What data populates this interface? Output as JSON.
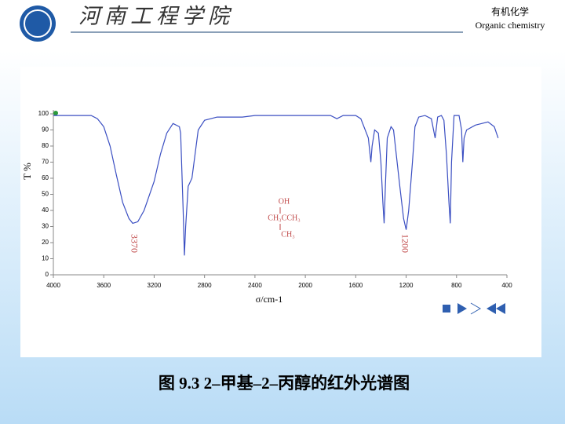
{
  "header": {
    "school": "河南工程学院",
    "course": "有机化学",
    "course_en": "Organic chemistry"
  },
  "caption": "图 9.3  2–甲基–2–丙醇的红外光谱图",
  "chart_data": {
    "type": "line",
    "ylabel": "T %",
    "xlabel": "σ/cm-1",
    "xlim": [
      4000,
      400
    ],
    "ylim": [
      0,
      100
    ],
    "xticks": [
      4000,
      3600,
      3200,
      2800,
      2400,
      2000,
      1600,
      1200,
      800,
      400
    ],
    "yticks": [
      0,
      10,
      20,
      30,
      40,
      50,
      60,
      70,
      80,
      90,
      100
    ],
    "color": "#3b4fc2",
    "x": [
      4000,
      3700,
      3650,
      3600,
      3550,
      3500,
      3450,
      3400,
      3370,
      3330,
      3280,
      3200,
      3150,
      3100,
      3050,
      3000,
      2990,
      2970,
      2960,
      2950,
      2930,
      2900,
      2880,
      2850,
      2800,
      2700,
      2500,
      2400,
      2000,
      1800,
      1750,
      1700,
      1600,
      1560,
      1500,
      1480,
      1470,
      1450,
      1420,
      1400,
      1385,
      1375,
      1365,
      1350,
      1320,
      1300,
      1250,
      1220,
      1200,
      1180,
      1150,
      1130,
      1100,
      1050,
      1000,
      970,
      950,
      920,
      900,
      880,
      860,
      850,
      840,
      820,
      780,
      760,
      750,
      740,
      720,
      650,
      600,
      550,
      500,
      470
    ],
    "values": [
      99,
      99,
      97,
      92,
      80,
      62,
      45,
      35,
      32,
      33,
      40,
      58,
      75,
      88,
      94,
      92,
      88,
      40,
      12,
      30,
      55,
      60,
      72,
      90,
      96,
      98,
      98,
      99,
      99,
      99,
      97,
      99,
      99,
      97,
      85,
      70,
      80,
      90,
      88,
      70,
      45,
      32,
      55,
      85,
      92,
      90,
      55,
      35,
      28,
      40,
      70,
      92,
      98,
      99,
      97,
      85,
      98,
      99,
      96,
      75,
      45,
      32,
      70,
      99,
      99,
      90,
      70,
      85,
      90,
      93,
      94,
      95,
      92,
      85
    ],
    "annotations": [
      "3370",
      "1200"
    ],
    "structure": [
      "OH",
      "CH₃CCH₃",
      "CH₃"
    ]
  }
}
